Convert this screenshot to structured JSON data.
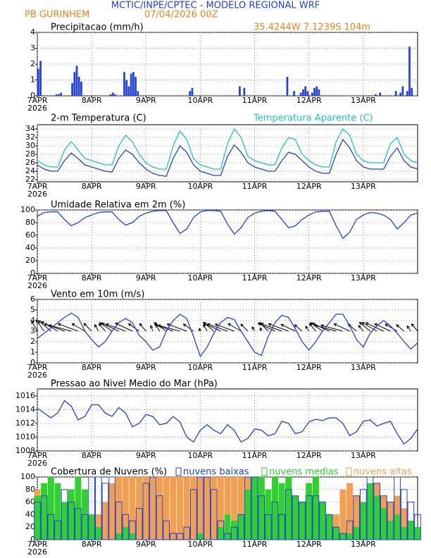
{
  "header": {
    "title": "MCTIC/INPE/CPTEC - MODELO REGIONAL WRF",
    "station": "PB GURINHEM",
    "run": "07/04/2026 00Z",
    "location": "35.4244W 7.1239S 104m"
  },
  "chart_data": [
    {
      "type": "bar",
      "title": "Precipitacao (mm/h)",
      "color": "#1f3fe0",
      "xlim": [
        0,
        168
      ],
      "ylim": [
        0,
        4
      ],
      "yticks": [
        0,
        1,
        2,
        3,
        4
      ],
      "grid": true,
      "xticks": [
        {
          "value": 0,
          "label": "7APR"
        },
        {
          "value": 24,
          "label": "8APR"
        },
        {
          "value": 48,
          "label": "9APR"
        },
        {
          "value": 72,
          "label": "10APR"
        },
        {
          "value": 96,
          "label": "11APR"
        },
        {
          "value": 120,
          "label": "12APR"
        },
        {
          "value": 144,
          "label": "13APR"
        }
      ],
      "xtick_year": "2026",
      "x": [
        0,
        1,
        8,
        9,
        10,
        15,
        16,
        17,
        18,
        19,
        32,
        33,
        34,
        38,
        39,
        40,
        41,
        42,
        43,
        44,
        67,
        68,
        89,
        91,
        110,
        113,
        116,
        117,
        118,
        119,
        121,
        122,
        123,
        124,
        149,
        151,
        158,
        160,
        161,
        163,
        164,
        165
      ],
      "values": [
        1.7,
        2.2,
        0.1,
        0.1,
        0.2,
        0.8,
        1.5,
        1.9,
        1.2,
        0.9,
        0.1,
        0.2,
        0.1,
        1.5,
        1.0,
        0.6,
        1.4,
        1.5,
        1.2,
        0.3,
        0.3,
        0.5,
        0.6,
        0.5,
        1.2,
        0.3,
        0.2,
        0.4,
        0.6,
        0.3,
        0.2,
        0.5,
        0.6,
        0.4,
        0.1,
        0.2,
        0.3,
        0.2,
        0.6,
        0.3,
        3.1,
        0.5
      ]
    },
    {
      "type": "line",
      "xlim": [
        0,
        168
      ],
      "ylim": [
        21.5,
        35
      ],
      "yticks": [
        22,
        24,
        26,
        28,
        30,
        32,
        34
      ],
      "grid": true,
      "xticks": [
        {
          "value": 0,
          "label": "7APR"
        },
        {
          "value": 24,
          "label": "8APR"
        },
        {
          "value": 48,
          "label": "9APR"
        },
        {
          "value": 72,
          "label": "10APR"
        },
        {
          "value": 96,
          "label": "11APR"
        },
        {
          "value": 120,
          "label": "12APR"
        },
        {
          "value": 144,
          "label": "13APR"
        }
      ],
      "xtick_year": "2026",
      "x": [
        0,
        3,
        6,
        9,
        12,
        15,
        18,
        21,
        24,
        27,
        30,
        33,
        36,
        39,
        42,
        45,
        48,
        51,
        54,
        57,
        60,
        63,
        66,
        69,
        72,
        75,
        78,
        81,
        84,
        87,
        90,
        93,
        96,
        99,
        102,
        105,
        108,
        111,
        114,
        117,
        120,
        123,
        126,
        129,
        132,
        135,
        138,
        141,
        144,
        147,
        150,
        153,
        156,
        159,
        162,
        165,
        168
      ],
      "series": [
        {
          "name": "2-m Temperatura (C)",
          "color": "#1f3fe0",
          "values": [
            25.5,
            24.5,
            24,
            24,
            26.5,
            28.3,
            27,
            25.5,
            25,
            24.5,
            24,
            23.8,
            27,
            29,
            28,
            26,
            24.5,
            23.5,
            23,
            22.8,
            27,
            30,
            28.5,
            25.5,
            24,
            23.5,
            23,
            23,
            27.5,
            30.2,
            28.5,
            26,
            25,
            24.5,
            24,
            24,
            26.5,
            28.5,
            28,
            26.5,
            25,
            24,
            23.5,
            23.5,
            28,
            31.5,
            29.5,
            26.5,
            25,
            24.5,
            24.5,
            24.5,
            27.5,
            29.5,
            26.5,
            25,
            24.5
          ]
        },
        {
          "name": "Temperatura Aparente (C)",
          "color": "#20c0c0",
          "values": [
            26.5,
            25.5,
            25,
            25,
            29,
            31,
            29,
            27,
            26.5,
            26,
            25.5,
            25.5,
            30,
            32.5,
            31,
            28,
            26,
            25,
            24.5,
            24.5,
            30,
            33.5,
            31.5,
            27,
            25.5,
            25,
            24.5,
            24.5,
            30.5,
            34,
            32,
            27.5,
            26.5,
            26,
            25.5,
            25.5,
            29.5,
            32,
            31.5,
            28,
            26.5,
            25.5,
            25,
            25,
            31,
            34,
            32.5,
            28,
            26.5,
            26,
            26,
            26,
            30.5,
            32,
            28,
            26.5,
            26
          ]
        }
      ]
    },
    {
      "type": "line",
      "title": "Umidade Relativa em 2m (%)",
      "xlim": [
        0,
        168
      ],
      "ylim": [
        0,
        100
      ],
      "yticks": [
        0,
        20,
        40,
        60,
        80,
        100
      ],
      "grid": true,
      "xticks": [
        {
          "value": 0,
          "label": "7APR"
        },
        {
          "value": 24,
          "label": "8APR"
        },
        {
          "value": 48,
          "label": "9APR"
        },
        {
          "value": 72,
          "label": "10APR"
        },
        {
          "value": 96,
          "label": "11APR"
        },
        {
          "value": 120,
          "label": "12APR"
        },
        {
          "value": 144,
          "label": "13APR"
        }
      ],
      "xtick_year": "2026",
      "x": [
        0,
        3,
        6,
        9,
        12,
        15,
        18,
        21,
        24,
        27,
        30,
        33,
        36,
        39,
        42,
        45,
        48,
        51,
        54,
        57,
        60,
        63,
        66,
        69,
        72,
        75,
        78,
        81,
        84,
        87,
        90,
        93,
        96,
        99,
        102,
        105,
        108,
        111,
        114,
        117,
        120,
        123,
        126,
        129,
        132,
        135,
        138,
        141,
        144,
        147,
        150,
        153,
        156,
        159,
        162,
        165,
        168
      ],
      "series": [
        {
          "color": "#1f3fe0",
          "values": [
            90,
            96,
            97,
            97,
            85,
            75,
            80,
            88,
            92,
            96,
            97,
            97,
            85,
            76,
            80,
            90,
            95,
            98,
            99,
            99,
            80,
            63,
            70,
            88,
            97,
            99,
            99,
            98,
            78,
            62,
            72,
            88,
            95,
            98,
            99,
            98,
            85,
            72,
            75,
            85,
            92,
            97,
            98,
            98,
            75,
            55,
            65,
            85,
            92,
            96,
            95,
            92,
            85,
            70,
            80,
            92,
            95
          ]
        }
      ]
    },
    {
      "type": "line",
      "title": "Vento em 10m (m/s)",
      "xlim": [
        0,
        168
      ],
      "ylim": [
        0,
        6
      ],
      "yticks": [
        0,
        1,
        2,
        3,
        4,
        5,
        6
      ],
      "grid": true,
      "xticks": [
        {
          "value": 0,
          "label": "7APR"
        },
        {
          "value": 24,
          "label": "8APR"
        },
        {
          "value": 48,
          "label": "9APR"
        },
        {
          "value": 72,
          "label": "10APR"
        },
        {
          "value": 96,
          "label": "11APR"
        },
        {
          "value": 120,
          "label": "12APR"
        },
        {
          "value": 144,
          "label": "13APR"
        }
      ],
      "xtick_year": "2026",
      "x": [
        0,
        3,
        6,
        9,
        12,
        15,
        18,
        21,
        24,
        27,
        30,
        33,
        36,
        39,
        42,
        45,
        48,
        51,
        54,
        57,
        60,
        63,
        66,
        69,
        72,
        75,
        78,
        81,
        84,
        87,
        90,
        93,
        96,
        99,
        102,
        105,
        108,
        111,
        114,
        117,
        120,
        123,
        126,
        129,
        132,
        135,
        138,
        141,
        144,
        147,
        150,
        153,
        156,
        159,
        162,
        165,
        168
      ],
      "series": [
        {
          "color": "#1f3fe0",
          "values": [
            2.3,
            2.8,
            3.3,
            3.8,
            4.3,
            4.7,
            4.3,
            3.0,
            2.2,
            1.5,
            2.0,
            3.0,
            3.8,
            4.2,
            3.8,
            2.6,
            2.0,
            1.2,
            1.5,
            3.0,
            4.0,
            4.6,
            4.2,
            2.5,
            0.6,
            1.5,
            2.8,
            3.8,
            4.3,
            4.1,
            3.0,
            2.0,
            1.0,
            0.7,
            2.5,
            3.8,
            4.5,
            4.3,
            3.2,
            2.0,
            1.2,
            2.0,
            3.0,
            3.8,
            4.6,
            4.6,
            3.5,
            2.2,
            1.5,
            2.8,
            3.5,
            4.0,
            3.5,
            2.8,
            2.0,
            1.3,
            1.9
          ],
          "wind_direction": [
            150,
            145,
            130,
            120,
            110,
            105,
            110,
            120,
            135,
            150,
            140,
            125,
            115,
            110,
            115,
            125,
            140,
            160,
            150,
            125,
            110,
            105,
            110,
            125,
            160,
            150,
            130,
            115,
            110,
            110,
            120,
            135,
            150,
            160,
            135,
            115,
            110,
            110,
            115,
            130,
            145,
            140,
            125,
            115,
            105,
            105,
            115,
            130,
            140,
            130,
            120,
            115,
            115,
            120,
            130,
            145,
            140
          ]
        }
      ]
    },
    {
      "type": "line",
      "title": "Pressao ao Nivel Medio do Mar (hPa)",
      "xlim": [
        0,
        168
      ],
      "ylim": [
        1008,
        1017
      ],
      "yticks": [
        1008,
        1010,
        1012,
        1014,
        1016
      ],
      "grid": true,
      "xticks": [
        {
          "value": 0,
          "label": "7APR"
        },
        {
          "value": 24,
          "label": "8APR"
        },
        {
          "value": 48,
          "label": "9APR"
        },
        {
          "value": 72,
          "label": "10APR"
        },
        {
          "value": 96,
          "label": "11APR"
        },
        {
          "value": 120,
          "label": "12APR"
        },
        {
          "value": 144,
          "label": "13APR"
        }
      ],
      "xtick_year": "2026",
      "x": [
        0,
        3,
        6,
        9,
        12,
        15,
        18,
        21,
        24,
        27,
        30,
        33,
        36,
        39,
        42,
        45,
        48,
        51,
        54,
        57,
        60,
        63,
        66,
        69,
        72,
        75,
        78,
        81,
        84,
        87,
        90,
        93,
        96,
        99,
        102,
        105,
        108,
        111,
        114,
        117,
        120,
        123,
        126,
        129,
        132,
        135,
        138,
        141,
        144,
        147,
        150,
        153,
        156,
        159,
        162,
        165,
        168
      ],
      "series": [
        {
          "color": "#1f3fe0",
          "values": [
            1014.2,
            1013.5,
            1012.8,
            1013.5,
            1015.3,
            1014.5,
            1012.5,
            1013.0,
            1014.7,
            1014.7,
            1013.5,
            1013.0,
            1014.3,
            1013.5,
            1011.5,
            1012.0,
            1013.3,
            1013.0,
            1011.8,
            1012.0,
            1013.0,
            1012.2,
            1010.0,
            1009.3,
            1011.0,
            1011.8,
            1011.0,
            1010.5,
            1011.8,
            1011.0,
            1009.3,
            1009.8,
            1011.2,
            1011.0,
            1010.2,
            1010.5,
            1012.3,
            1012.0,
            1010.5,
            1010.8,
            1012.2,
            1012.6,
            1012.4,
            1012.8,
            1012.8,
            1012.0,
            1010.2,
            1010.8,
            1012.3,
            1012.5,
            1011.6,
            1012.0,
            1012.3,
            1010.5,
            1009.0,
            1009.8,
            1011.2
          ]
        }
      ]
    },
    {
      "type": "bar",
      "title": "Cobertura de Nuvens (%)",
      "xlim": [
        0,
        168
      ],
      "ylim": [
        0,
        100
      ],
      "yticks": [
        0,
        20,
        40,
        60,
        80,
        100
      ],
      "grid": true,
      "xticks": [
        {
          "value": 0,
          "label": "7APR"
        },
        {
          "value": 24,
          "label": "8APR"
        },
        {
          "value": 48,
          "label": "9APR"
        },
        {
          "value": 72,
          "label": "10APR"
        },
        {
          "value": 96,
          "label": "11APR"
        },
        {
          "value": 120,
          "label": "12APR"
        },
        {
          "value": 144,
          "label": "13APR"
        }
      ],
      "xtick_year": "2026",
      "x": [
        0,
        3,
        6,
        9,
        12,
        15,
        18,
        21,
        24,
        27,
        30,
        33,
        36,
        39,
        42,
        45,
        48,
        51,
        54,
        57,
        60,
        63,
        66,
        69,
        72,
        75,
        78,
        81,
        84,
        87,
        90,
        93,
        96,
        99,
        102,
        105,
        108,
        111,
        114,
        117,
        120,
        123,
        126,
        129,
        132,
        135,
        138,
        141,
        144,
        147,
        150,
        153,
        156,
        159,
        162,
        165,
        168
      ],
      "series": [
        {
          "name": "nuvens altas",
          "color": "#f0a050",
          "filled": true,
          "values": [
            80,
            60,
            40,
            20,
            10,
            30,
            50,
            40,
            20,
            40,
            60,
            90,
            100,
            100,
            100,
            100,
            100,
            100,
            100,
            100,
            100,
            100,
            100,
            100,
            100,
            100,
            100,
            100,
            100,
            100,
            100,
            100,
            100,
            90,
            60,
            30,
            10,
            20,
            10,
            0,
            0,
            0,
            0,
            10,
            40,
            80,
            90,
            70,
            60,
            80,
            90,
            70,
            60,
            70,
            50,
            30,
            20
          ]
        },
        {
          "name": "nuvens medias",
          "color": "#30d030",
          "filled": true,
          "values": [
            70,
            90,
            100,
            90,
            60,
            80,
            100,
            80,
            40,
            20,
            0,
            0,
            10,
            20,
            10,
            0,
            0,
            0,
            0,
            0,
            0,
            0,
            0,
            0,
            10,
            0,
            0,
            20,
            40,
            30,
            40,
            80,
            100,
            100,
            80,
            100,
            90,
            100,
            70,
            60,
            90,
            100,
            60,
            40,
            20,
            10,
            10,
            20,
            60,
            90,
            70,
            50,
            30,
            40,
            20,
            30,
            20
          ]
        },
        {
          "name": "nuvens baixas",
          "color": "#1f3fe0",
          "filled": false,
          "values": [
            60,
            70,
            40,
            30,
            80,
            60,
            50,
            40,
            100,
            100,
            90,
            100,
            60,
            40,
            30,
            50,
            90,
            100,
            70,
            30,
            10,
            10,
            20,
            80,
            100,
            100,
            80,
            30,
            10,
            20,
            40,
            100,
            100,
            70,
            40,
            60,
            40,
            80,
            70,
            60,
            70,
            70,
            60,
            40,
            20,
            10,
            30,
            70,
            80,
            100,
            90,
            70,
            60,
            100,
            80,
            60,
            40
          ]
        }
      ]
    }
  ]
}
